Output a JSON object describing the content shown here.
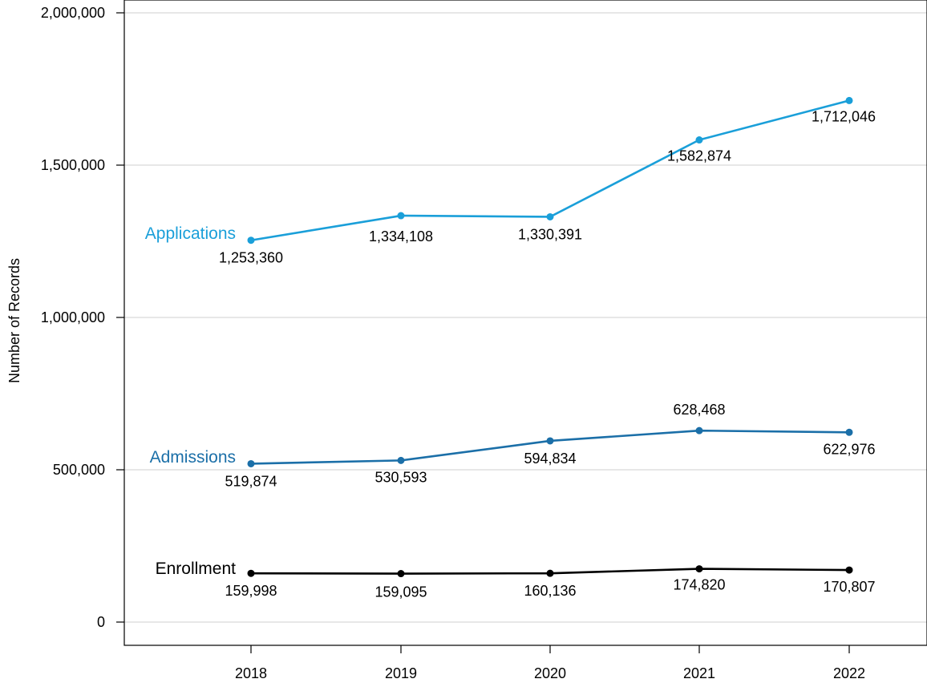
{
  "chart_data": {
    "type": "line",
    "title": "",
    "xlabel": "",
    "ylabel": "Number of Records",
    "categories": [
      "2018",
      "2019",
      "2020",
      "2021",
      "2022"
    ],
    "ylim": [
      0,
      2000000
    ],
    "yticks": [
      0,
      500000,
      1000000,
      1500000,
      2000000
    ],
    "ytick_labels": [
      "0",
      "500,000",
      "1,000,000",
      "1,500,000",
      "2,000,000"
    ],
    "grid": "horizontal",
    "legend": "direct labels at left of each line",
    "series": [
      {
        "name": "Applications",
        "color": "#1a9fd9",
        "values": [
          1253360,
          1334108,
          1330391,
          1582874,
          1712046
        ],
        "labels": [
          "1,253,360",
          "1,334,108",
          "1,330,391",
          "1,582,874",
          "1,712,046"
        ]
      },
      {
        "name": "Admissions",
        "color": "#1b6fa8",
        "values": [
          519874,
          530593,
          594834,
          628468,
          622976
        ],
        "labels": [
          "519,874",
          "530,593",
          "594,834",
          "628,468",
          "622,976"
        ]
      },
      {
        "name": "Enrollment",
        "color": "#000000",
        "values": [
          159998,
          159095,
          160136,
          174820,
          170807
        ],
        "labels": [
          "159,998",
          "159,095",
          "160,136",
          "174,820",
          "170,807"
        ]
      }
    ]
  }
}
